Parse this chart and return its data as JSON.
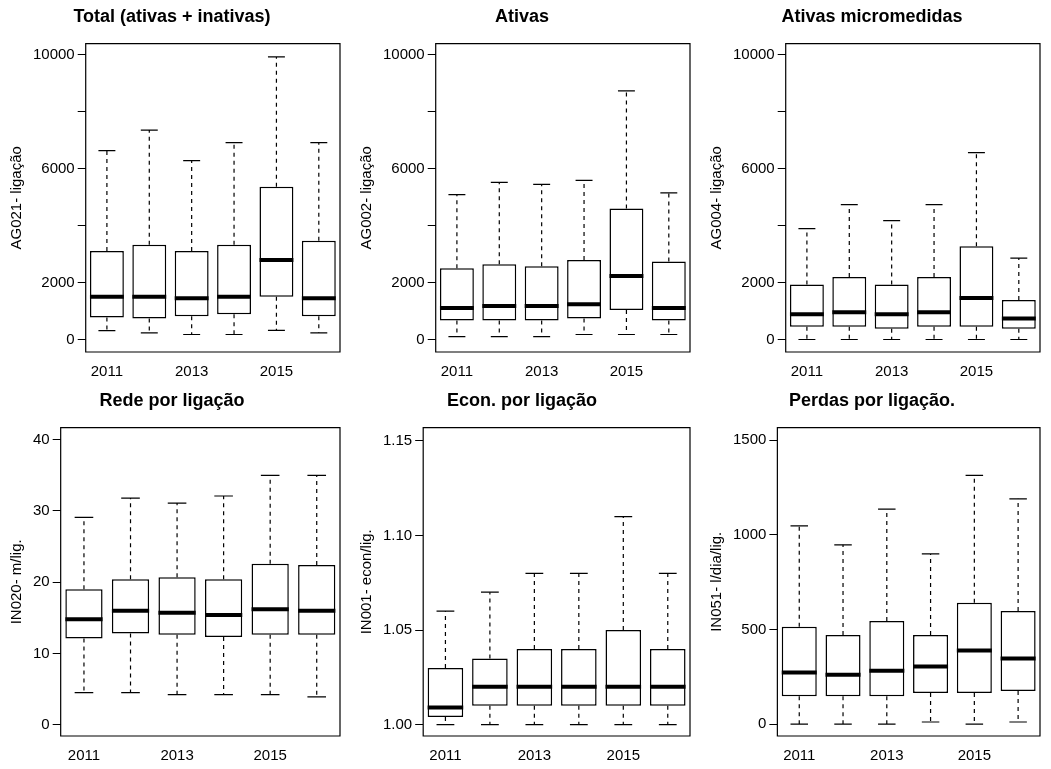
{
  "chart_data": [
    {
      "type": "box",
      "title": "Total (ativas + inativas)",
      "ylabel": "AG021- ligação",
      "categories": [
        "2011",
        null,
        "2013",
        null,
        "2015",
        null
      ],
      "ylim": [
        -440,
        10400
      ],
      "yticks": [
        0,
        2000,
        {
          "value": 4000,
          "label": null
        },
        6000,
        {
          "value": 8000,
          "label": null
        },
        10000
      ],
      "boxes": [
        {
          "low": 310,
          "q1": 770,
          "median": 1500,
          "q3": 3110,
          "high": 6640
        },
        {
          "low": 230,
          "q1": 740,
          "median": 1500,
          "q3": 3330,
          "high": 7360
        },
        {
          "low": 175,
          "q1": 820,
          "median": 1450,
          "q3": 3110,
          "high": 6290
        },
        {
          "low": 175,
          "q1": 890,
          "median": 1500,
          "q3": 3330,
          "high": 6920
        },
        {
          "low": 320,
          "q1": 1500,
          "median": 2790,
          "q3": 5370,
          "high": 9930
        },
        {
          "low": 230,
          "q1": 820,
          "median": 1450,
          "q3": 3470,
          "high": 6920
        }
      ]
    },
    {
      "type": "box",
      "title": "Ativas",
      "ylabel": "AG002- ligação",
      "categories": [
        "2011",
        null,
        "2013",
        null,
        "2015",
        null
      ],
      "ylim": [
        -440,
        10400
      ],
      "yticks": [
        0,
        2000,
        {
          "value": 4000,
          "label": null
        },
        6000,
        {
          "value": 8000,
          "label": null
        },
        10000
      ],
      "boxes": [
        {
          "low": 100,
          "q1": 670,
          "median": 1110,
          "q3": 2500,
          "high": 5090
        },
        {
          "low": 100,
          "q1": 670,
          "median": 1180,
          "q3": 2640,
          "high": 5520
        },
        {
          "low": 100,
          "q1": 670,
          "median": 1180,
          "q3": 2570,
          "high": 5450
        },
        {
          "low": 175,
          "q1": 740,
          "median": 1240,
          "q3": 2790,
          "high": 5590
        },
        {
          "low": 175,
          "q1": 1040,
          "median": 2230,
          "q3": 4600,
          "high": 8740
        },
        {
          "low": 175,
          "q1": 670,
          "median": 1110,
          "q3": 2740,
          "high": 5150
        }
      ]
    },
    {
      "type": "box",
      "title": "Ativas micromedidas",
      "ylabel": "AG004- ligação",
      "categories": [
        "2011",
        null,
        "2013",
        null,
        "2015",
        null
      ],
      "ylim": [
        -440,
        10400
      ],
      "yticks": [
        0,
        2000,
        {
          "value": 4000,
          "label": null
        },
        6000,
        {
          "value": 8000,
          "label": null
        },
        10000
      ],
      "boxes": [
        {
          "low": 0,
          "q1": 450,
          "median": 890,
          "q3": 1930,
          "high": 3900
        },
        {
          "low": 0,
          "q1": 450,
          "median": 960,
          "q3": 2200,
          "high": 4740
        },
        {
          "low": 0,
          "q1": 380,
          "median": 890,
          "q3": 1930,
          "high": 4180
        },
        {
          "low": 0,
          "q1": 450,
          "median": 960,
          "q3": 2200,
          "high": 4740
        },
        {
          "low": 0,
          "q1": 450,
          "median": 1460,
          "q3": 3280,
          "high": 6570
        },
        {
          "low": 0,
          "q1": 380,
          "median": 740,
          "q3": 1390,
          "high": 2860
        }
      ]
    },
    {
      "type": "box",
      "title": "Rede por ligação",
      "ylabel": "IN020- m/lig.",
      "categories": [
        "2011",
        null,
        "2013",
        null,
        "2015",
        null
      ],
      "ylim": [
        -1.6,
        41.7
      ],
      "yticks": [
        0,
        10,
        20,
        30,
        40
      ],
      "boxes": [
        {
          "low": 4.5,
          "q1": 12.1,
          "median": 14.8,
          "q3": 19.0,
          "high": 29.1
        },
        {
          "low": 4.5,
          "q1": 12.8,
          "median": 16.0,
          "q3": 20.4,
          "high": 31.8
        },
        {
          "low": 4.2,
          "q1": 12.6,
          "median": 15.7,
          "q3": 20.7,
          "high": 31.1
        },
        {
          "low": 4.2,
          "q1": 12.3,
          "median": 15.4,
          "q3": 20.4,
          "high": 32.1
        },
        {
          "low": 4.2,
          "q1": 12.6,
          "median": 16.2,
          "q3": 22.6,
          "high": 35.0
        },
        {
          "low": 3.9,
          "q1": 12.6,
          "median": 16.0,
          "q3": 22.4,
          "high": 35.0
        }
      ]
    },
    {
      "type": "box",
      "title": "Econ. por ligação",
      "ylabel": "IN001- econ/lig.",
      "categories": [
        "2011",
        null,
        "2013",
        null,
        "2015",
        null
      ],
      "ylim": [
        0.994,
        1.157
      ],
      "yticks": [
        {
          "value": 1,
          "label": "1.00"
        },
        {
          "value": 1.05,
          "label": "1.05"
        },
        {
          "value": 1.1,
          "label": "1.10"
        },
        {
          "value": 1.15,
          "label": "1.15"
        }
      ],
      "boxes": [
        {
          "low": 1.0,
          "q1": 1.004,
          "median": 1.009,
          "q3": 1.03,
          "high": 1.06
        },
        {
          "low": 1.0,
          "q1": 1.01,
          "median": 1.02,
          "q3": 1.035,
          "high": 1.07
        },
        {
          "low": 1.0,
          "q1": 1.01,
          "median": 1.02,
          "q3": 1.04,
          "high": 1.08
        },
        {
          "low": 1.0,
          "q1": 1.01,
          "median": 1.02,
          "q3": 1.04,
          "high": 1.08
        },
        {
          "low": 1.0,
          "q1": 1.01,
          "median": 1.02,
          "q3": 1.05,
          "high": 1.11
        },
        {
          "low": 1.0,
          "q1": 1.01,
          "median": 1.02,
          "q3": 1.04,
          "high": 1.08
        }
      ]
    },
    {
      "type": "box",
      "title": "Perdas por ligação.",
      "ylabel": "IN051- l/dia/lig.",
      "categories": [
        "2011",
        null,
        "2013",
        null,
        "2015",
        null
      ],
      "ylim": [
        -63,
        1566
      ],
      "yticks": [
        0,
        500,
        1000,
        1500
      ],
      "boxes": [
        {
          "low": 0,
          "q1": 147,
          "median": 273,
          "q3": 514,
          "high": 1047
        },
        {
          "low": 0,
          "q1": 147,
          "median": 260,
          "q3": 470,
          "high": 947
        },
        {
          "low": 0,
          "q1": 147,
          "median": 282,
          "q3": 545,
          "high": 1135
        },
        {
          "low": 11,
          "q1": 164,
          "median": 304,
          "q3": 470,
          "high": 899
        },
        {
          "low": 0,
          "q1": 164,
          "median": 389,
          "q3": 641,
          "high": 1314
        },
        {
          "low": 11,
          "q1": 175,
          "median": 346,
          "q3": 597,
          "high": 1190
        }
      ]
    }
  ]
}
